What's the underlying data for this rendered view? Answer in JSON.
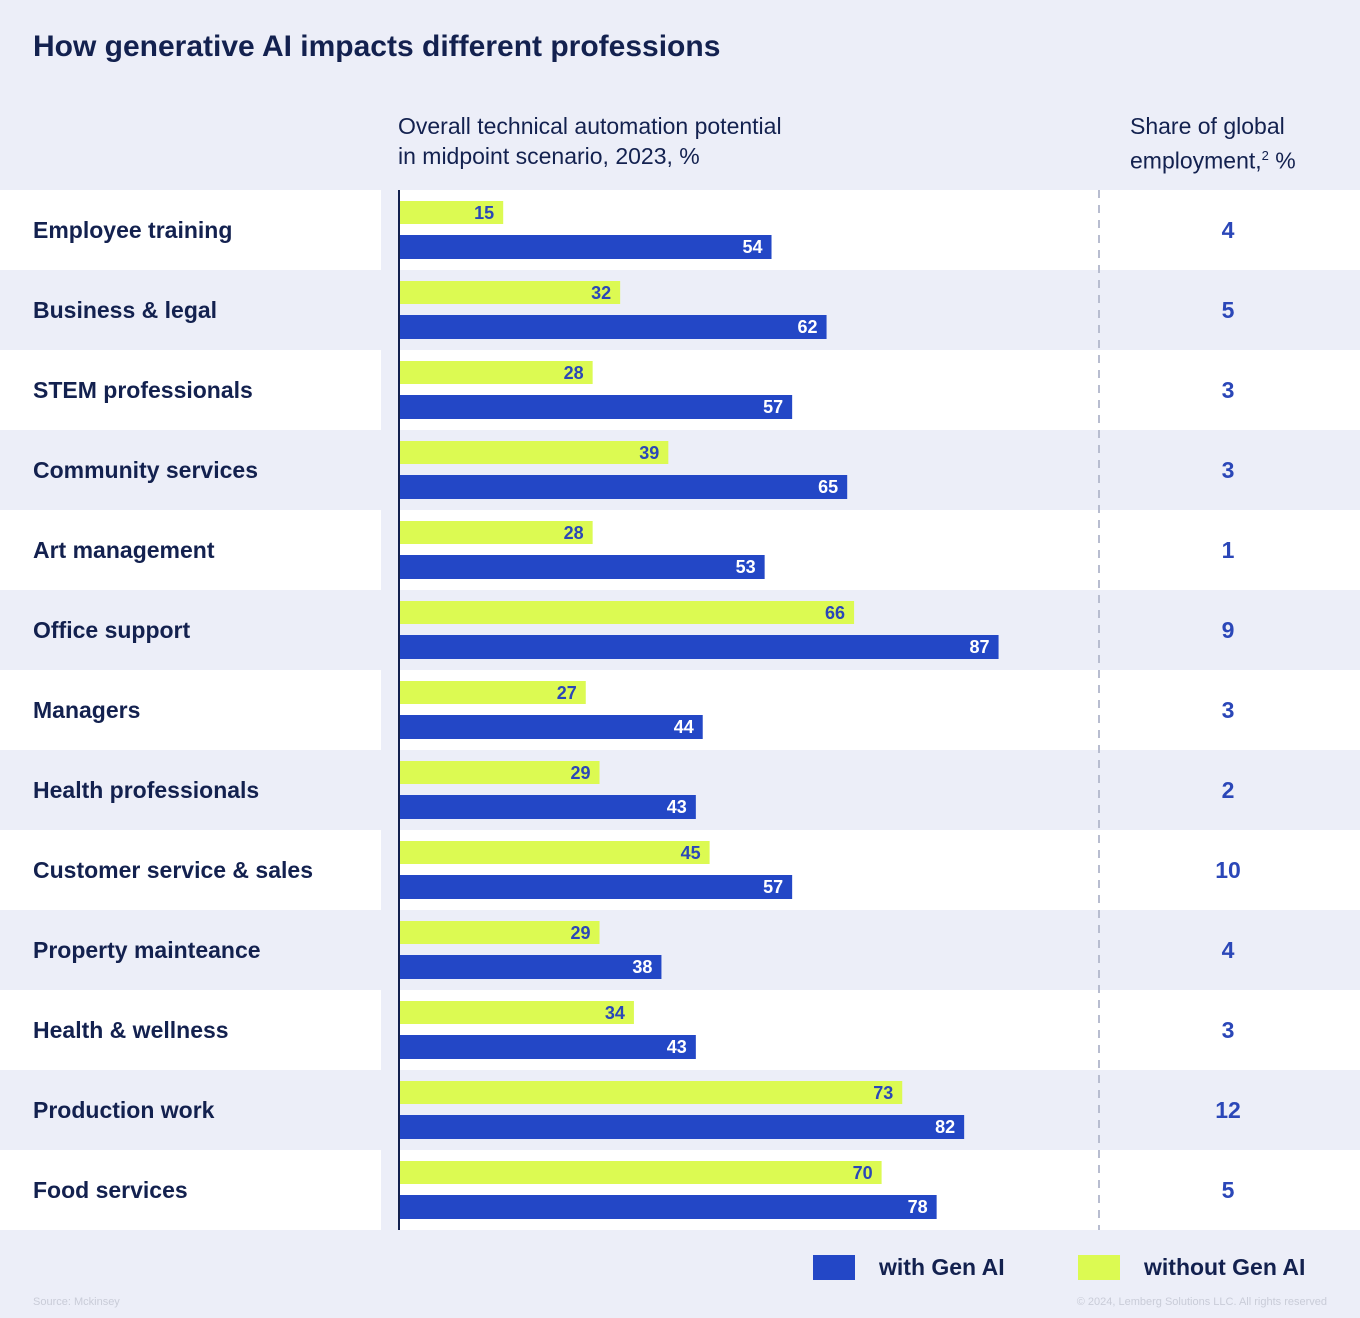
{
  "title": "How generative AI impacts different professions",
  "headers": {
    "automation_line1": "Overall technical automation potential",
    "automation_line2": "in midpoint scenario, 2023, %",
    "share_line1": "Share of global",
    "share_line2_prefix": "employment,",
    "share_sup": "2",
    "share_line2_suffix": " %"
  },
  "colors": {
    "with_gen_ai": "#2347c6",
    "without_gen_ai": "#dcfa52",
    "text_dark": "#13214f",
    "value_blue": "#2b47b8",
    "row_white": "#ffffff",
    "row_tint": "#eceef8"
  },
  "legend": {
    "with_label": "with Gen AI",
    "without_label": "without Gen AI"
  },
  "footer": {
    "source": "Source: Mckinsey",
    "copyright": "© 2024, Lemberg Solutions LLC. All rights reserved"
  },
  "chart_data": {
    "type": "bar",
    "orientation": "horizontal",
    "title": "How generative AI impacts different professions",
    "xlabel": "Overall technical automation potential in midpoint scenario, 2023, %",
    "xlim": [
      0,
      100
    ],
    "categories": [
      "Employee training",
      "Business & legal",
      "STEM professionals",
      "Community services",
      "Art management",
      "Office support",
      "Managers",
      "Health professionals",
      "Customer service & sales",
      "Property mainteance",
      "Health & wellness",
      "Production work",
      "Food services"
    ],
    "series": [
      {
        "name": "without Gen AI",
        "values": [
          15,
          32,
          28,
          39,
          28,
          66,
          27,
          29,
          45,
          29,
          34,
          73,
          70
        ]
      },
      {
        "name": "with Gen AI",
        "values": [
          54,
          62,
          57,
          65,
          53,
          87,
          44,
          43,
          57,
          38,
          43,
          82,
          78
        ]
      }
    ],
    "share_of_global_employment": [
      4,
      5,
      3,
      3,
      1,
      9,
      3,
      2,
      10,
      4,
      3,
      12,
      5
    ]
  }
}
